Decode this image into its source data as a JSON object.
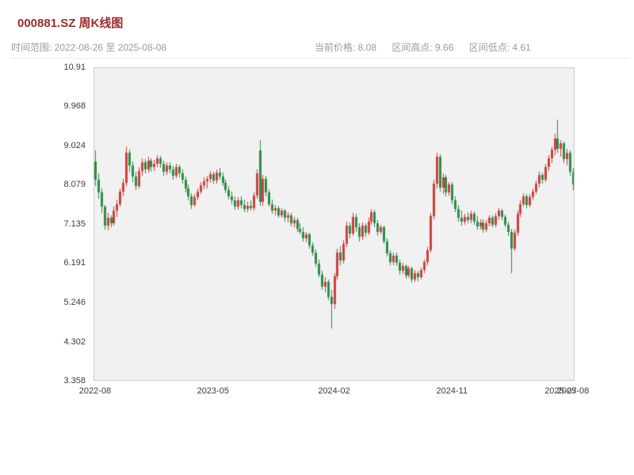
{
  "header": {
    "title": "000881.SZ 周K线图",
    "time_range": "时间范围: 2022-08-26 至 2025-08-08",
    "current_price": "当前价格: 8.08",
    "range_high": "区间高点: 9.66",
    "range_low": "区间低点: 4.61"
  },
  "chart_data": {
    "type": "candlestick",
    "title": "000881.SZ 周K线图",
    "symbol": "000881.SZ",
    "period": "weekly",
    "date_start": "2022-08-26",
    "date_end": "2025-08-08",
    "current_price": 8.08,
    "range_high": 9.66,
    "range_low": 4.61,
    "up_color": "#cf3f3f",
    "down_color": "#2e8b46",
    "plot_bg": "#f1f1f1",
    "border_color": "#c9c9c9",
    "y_min": 3.358,
    "y_max": 10.91,
    "y_ticks": [
      10.91,
      9.968,
      9.024,
      8.079,
      7.135,
      6.191,
      5.246,
      4.302,
      3.358
    ],
    "x_ticks": [
      {
        "label": "2022-08",
        "index": 0
      },
      {
        "label": "2023-05",
        "index": 38
      },
      {
        "label": "2024-02",
        "index": 77
      },
      {
        "label": "2024-11",
        "index": 115
      },
      {
        "label": "2025-07",
        "index": 150
      },
      {
        "label": "2025-08",
        "index": 154
      }
    ],
    "ohlc_format": [
      "open",
      "high",
      "low",
      "close"
    ],
    "ohlc": [
      [
        8.65,
        8.9,
        8.05,
        8.2
      ],
      [
        8.2,
        8.35,
        7.75,
        7.9
      ],
      [
        7.9,
        8.0,
        7.4,
        7.55
      ],
      [
        7.55,
        7.6,
        7.0,
        7.1
      ],
      [
        7.1,
        7.4,
        6.98,
        7.28
      ],
      [
        7.28,
        7.35,
        7.05,
        7.15
      ],
      [
        7.15,
        7.55,
        7.1,
        7.45
      ],
      [
        7.45,
        7.72,
        7.3,
        7.62
      ],
      [
        7.62,
        8.0,
        7.55,
        7.92
      ],
      [
        7.92,
        8.22,
        7.8,
        8.12
      ],
      [
        8.12,
        9.0,
        8.05,
        8.85
      ],
      [
        8.85,
        8.92,
        8.4,
        8.55
      ],
      [
        8.55,
        8.65,
        8.15,
        8.28
      ],
      [
        8.28,
        8.4,
        7.95,
        8.05
      ],
      [
        8.05,
        8.5,
        8.0,
        8.42
      ],
      [
        8.42,
        8.72,
        8.3,
        8.62
      ],
      [
        8.62,
        8.7,
        8.35,
        8.45
      ],
      [
        8.45,
        8.75,
        8.38,
        8.66
      ],
      [
        8.66,
        8.72,
        8.4,
        8.5
      ],
      [
        8.5,
        8.68,
        8.42,
        8.58
      ],
      [
        8.58,
        8.8,
        8.5,
        8.72
      ],
      [
        8.72,
        8.78,
        8.48,
        8.58
      ],
      [
        8.58,
        8.66,
        8.3,
        8.4
      ],
      [
        8.4,
        8.62,
        8.32,
        8.55
      ],
      [
        8.55,
        8.62,
        8.35,
        8.45
      ],
      [
        8.45,
        8.55,
        8.2,
        8.3
      ],
      [
        8.3,
        8.58,
        8.24,
        8.5
      ],
      [
        8.5,
        8.56,
        8.26,
        8.35
      ],
      [
        8.35,
        8.45,
        8.1,
        8.2
      ],
      [
        8.2,
        8.28,
        7.9,
        8.0
      ],
      [
        8.0,
        8.08,
        7.7,
        7.8
      ],
      [
        7.8,
        7.88,
        7.5,
        7.6
      ],
      [
        7.6,
        7.85,
        7.55,
        7.78
      ],
      [
        7.78,
        8.0,
        7.7,
        7.92
      ],
      [
        7.92,
        8.14,
        7.85,
        8.06
      ],
      [
        8.06,
        8.25,
        7.98,
        8.16
      ],
      [
        8.16,
        8.3,
        8.0,
        8.22
      ],
      [
        8.22,
        8.42,
        8.12,
        8.34
      ],
      [
        8.34,
        8.4,
        8.1,
        8.18
      ],
      [
        8.18,
        8.45,
        8.1,
        8.38
      ],
      [
        8.38,
        8.48,
        8.2,
        8.28
      ],
      [
        8.28,
        8.38,
        8.05,
        8.12
      ],
      [
        8.12,
        8.2,
        7.88,
        7.95
      ],
      [
        7.95,
        8.05,
        7.72,
        7.8
      ],
      [
        7.8,
        7.92,
        7.62,
        7.7
      ],
      [
        7.7,
        7.8,
        7.48,
        7.55
      ],
      [
        7.55,
        7.78,
        7.48,
        7.7
      ],
      [
        7.7,
        7.8,
        7.52,
        7.6
      ],
      [
        7.6,
        7.72,
        7.42,
        7.5
      ],
      [
        7.5,
        7.66,
        7.42,
        7.58
      ],
      [
        7.58,
        7.7,
        7.45,
        7.52
      ],
      [
        7.52,
        7.9,
        7.46,
        7.82
      ],
      [
        7.82,
        8.45,
        7.75,
        8.35
      ],
      [
        8.9,
        9.15,
        7.58,
        7.66
      ],
      [
        7.66,
        8.32,
        7.58,
        8.22
      ],
      [
        8.22,
        8.3,
        7.8,
        7.9
      ],
      [
        7.9,
        7.98,
        7.55,
        7.62
      ],
      [
        7.62,
        7.72,
        7.38,
        7.45
      ],
      [
        7.45,
        7.6,
        7.35,
        7.52
      ],
      [
        7.52,
        7.58,
        7.28,
        7.35
      ],
      [
        7.35,
        7.52,
        7.28,
        7.45
      ],
      [
        7.45,
        7.5,
        7.2,
        7.28
      ],
      [
        7.28,
        7.42,
        7.18,
        7.35
      ],
      [
        7.35,
        7.4,
        7.08,
        7.15
      ],
      [
        7.15,
        7.3,
        7.05,
        7.22
      ],
      [
        7.22,
        7.28,
        6.95,
        7.02
      ],
      [
        7.02,
        7.15,
        6.88,
        6.95
      ],
      [
        6.95,
        7.05,
        6.72,
        6.8
      ],
      [
        6.8,
        6.95,
        6.7,
        6.88
      ],
      [
        6.88,
        6.92,
        6.55,
        6.62
      ],
      [
        6.62,
        6.7,
        6.38,
        6.45
      ],
      [
        6.45,
        6.52,
        6.1,
        6.18
      ],
      [
        6.18,
        6.28,
        5.85,
        5.92
      ],
      [
        5.92,
        6.0,
        5.55,
        5.62
      ],
      [
        5.62,
        5.85,
        5.5,
        5.75
      ],
      [
        5.75,
        5.8,
        5.3,
        5.38
      ],
      [
        5.38,
        5.55,
        4.61,
        5.2
      ],
      [
        5.2,
        5.95,
        5.1,
        5.88
      ],
      [
        5.88,
        6.55,
        5.8,
        6.45
      ],
      [
        6.45,
        6.6,
        6.15,
        6.25
      ],
      [
        6.25,
        6.75,
        6.18,
        6.65
      ],
      [
        6.65,
        7.2,
        6.58,
        7.1
      ],
      [
        7.1,
        7.18,
        6.8,
        6.9
      ],
      [
        6.9,
        7.4,
        6.85,
        7.3
      ],
      [
        7.3,
        7.38,
        6.95,
        7.05
      ],
      [
        7.05,
        7.15,
        6.72,
        6.82
      ],
      [
        6.82,
        7.18,
        6.75,
        7.1
      ],
      [
        7.1,
        7.16,
        6.82,
        6.92
      ],
      [
        6.92,
        7.28,
        6.86,
        7.2
      ],
      [
        7.2,
        7.5,
        7.12,
        7.42
      ],
      [
        7.42,
        7.48,
        7.05,
        7.15
      ],
      [
        7.15,
        7.22,
        6.85,
        6.95
      ],
      [
        6.95,
        7.12,
        6.88,
        7.05
      ],
      [
        7.05,
        7.1,
        6.65,
        6.72
      ],
      [
        6.72,
        6.8,
        6.35,
        6.42
      ],
      [
        6.42,
        6.5,
        6.15,
        6.22
      ],
      [
        6.22,
        6.45,
        6.15,
        6.38
      ],
      [
        6.38,
        6.44,
        6.12,
        6.2
      ],
      [
        6.2,
        6.28,
        5.92,
        6.0
      ],
      [
        6.0,
        6.2,
        5.94,
        6.12
      ],
      [
        6.12,
        6.16,
        5.82,
        5.9
      ],
      [
        5.9,
        6.12,
        5.84,
        6.06
      ],
      [
        6.06,
        6.1,
        5.72,
        5.8
      ],
      [
        5.8,
        6.02,
        5.74,
        5.96
      ],
      [
        5.96,
        6.0,
        5.76,
        5.86
      ],
      [
        5.86,
        6.08,
        5.8,
        6.02
      ],
      [
        6.02,
        6.28,
        5.95,
        6.22
      ],
      [
        6.22,
        6.58,
        6.15,
        6.5
      ],
      [
        6.5,
        7.4,
        6.45,
        7.32
      ],
      [
        7.32,
        8.2,
        7.25,
        8.1
      ],
      [
        8.1,
        8.85,
        8.0,
        8.75
      ],
      [
        8.75,
        8.82,
        7.92,
        8.02
      ],
      [
        8.02,
        8.35,
        7.85,
        8.25
      ],
      [
        8.25,
        8.32,
        7.8,
        7.9
      ],
      [
        7.9,
        8.15,
        7.82,
        8.08
      ],
      [
        8.08,
        8.14,
        7.62,
        7.7
      ],
      [
        7.7,
        7.8,
        7.42,
        7.5
      ],
      [
        7.5,
        7.6,
        7.2,
        7.28
      ],
      [
        7.28,
        7.45,
        7.1,
        7.2
      ],
      [
        7.2,
        7.38,
        7.12,
        7.3
      ],
      [
        7.3,
        7.42,
        7.15,
        7.22
      ],
      [
        7.22,
        7.45,
        7.16,
        7.38
      ],
      [
        7.38,
        7.44,
        7.12,
        7.2
      ],
      [
        7.2,
        7.32,
        7.0,
        7.08
      ],
      [
        7.08,
        7.25,
        7.0,
        7.18
      ],
      [
        7.18,
        7.24,
        6.92,
        7.0
      ],
      [
        7.0,
        7.22,
        6.94,
        7.15
      ],
      [
        7.15,
        7.35,
        7.08,
        7.28
      ],
      [
        7.28,
        7.34,
        7.05,
        7.12
      ],
      [
        7.12,
        7.4,
        7.06,
        7.32
      ],
      [
        7.32,
        7.52,
        7.25,
        7.45
      ],
      [
        7.45,
        7.5,
        7.22,
        7.3
      ],
      [
        7.3,
        7.36,
        7.05,
        7.12
      ],
      [
        7.12,
        7.2,
        6.85,
        6.95
      ],
      [
        6.95,
        7.02,
        5.95,
        6.55
      ],
      [
        6.55,
        7.0,
        6.48,
        6.92
      ],
      [
        6.92,
        7.45,
        6.85,
        7.38
      ],
      [
        7.38,
        7.7,
        7.3,
        7.62
      ],
      [
        7.62,
        7.88,
        7.55,
        7.8
      ],
      [
        7.8,
        7.86,
        7.52,
        7.6
      ],
      [
        7.6,
        7.85,
        7.54,
        7.78
      ],
      [
        7.78,
        8.0,
        7.7,
        7.92
      ],
      [
        7.92,
        8.18,
        7.85,
        8.1
      ],
      [
        8.1,
        8.4,
        8.02,
        8.32
      ],
      [
        8.32,
        8.38,
        8.1,
        8.2
      ],
      [
        8.2,
        8.58,
        8.14,
        8.5
      ],
      [
        8.5,
        8.8,
        8.42,
        8.72
      ],
      [
        8.72,
        9.0,
        8.6,
        8.92
      ],
      [
        8.92,
        9.3,
        8.8,
        9.2
      ],
      [
        9.2,
        9.66,
        8.85,
        8.95
      ],
      [
        8.95,
        9.15,
        8.75,
        9.08
      ],
      [
        9.08,
        9.12,
        8.6,
        8.7
      ],
      [
        8.7,
        8.95,
        8.55,
        8.85
      ],
      [
        8.85,
        8.9,
        8.3,
        8.4
      ],
      [
        8.4,
        8.48,
        7.95,
        8.08
      ]
    ]
  }
}
